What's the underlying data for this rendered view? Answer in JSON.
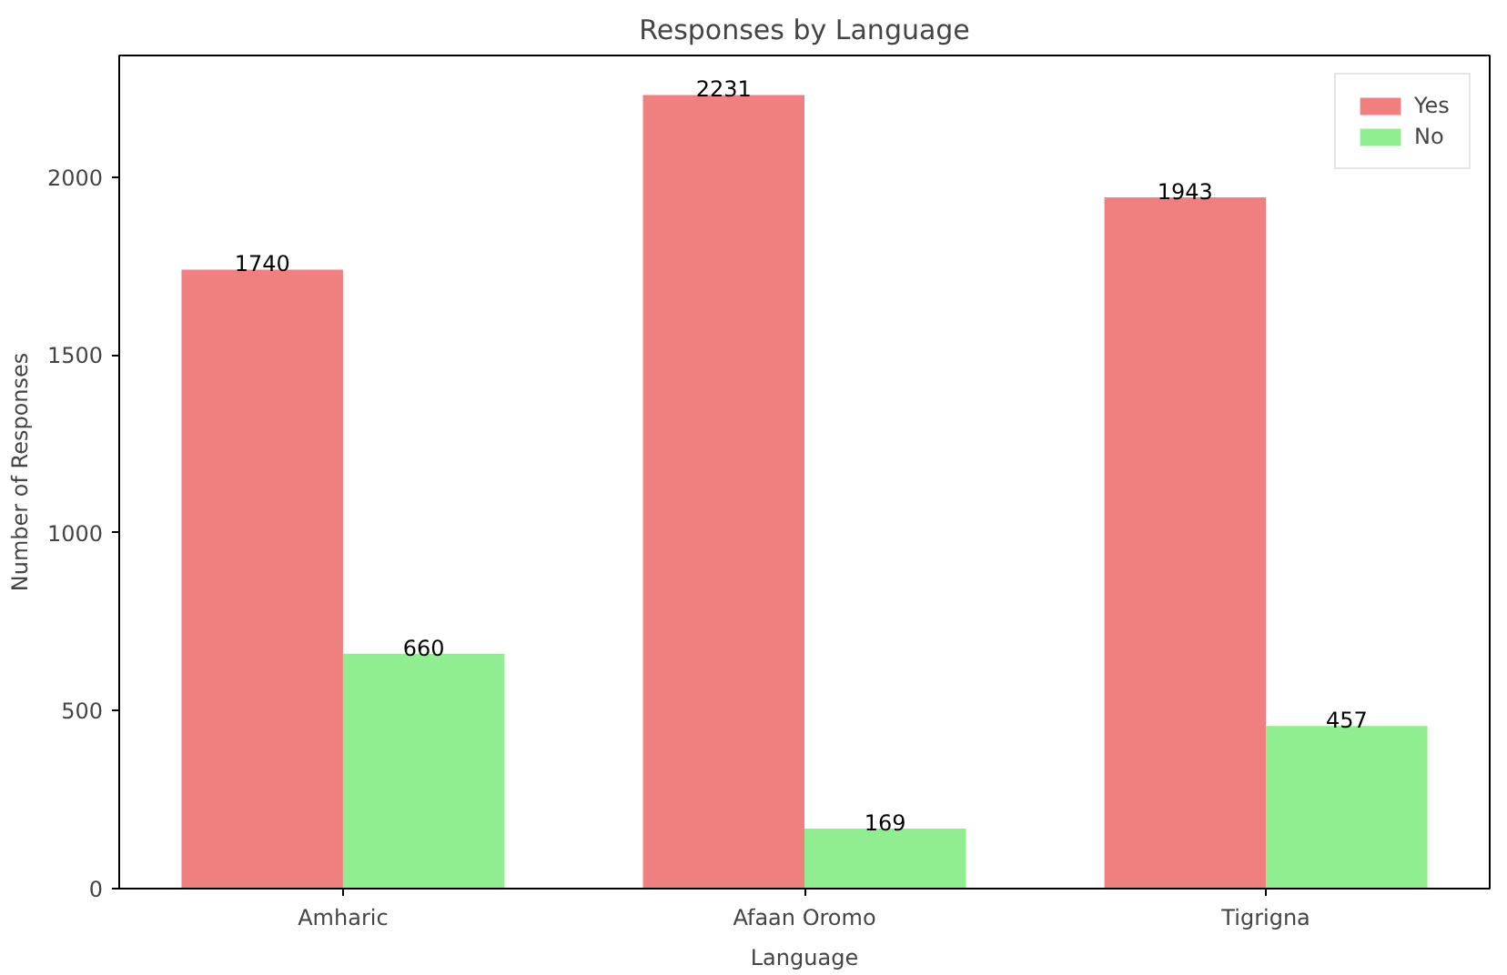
{
  "chart_data": {
    "type": "bar",
    "title": "Responses by Language",
    "xlabel": "Language",
    "ylabel": "Number of Responses",
    "categories": [
      "Amharic",
      "Afaan Oromo",
      "Tigrigna"
    ],
    "series": [
      {
        "name": "Yes",
        "color": "#f08080",
        "values": [
          1740,
          2231,
          1943
        ]
      },
      {
        "name": "No",
        "color": "#90ee90",
        "values": [
          660,
          169,
          457
        ]
      }
    ],
    "ylim": [
      0,
      2342
    ],
    "yticks": [
      0,
      500,
      1000,
      1500,
      2000
    ],
    "grid": false,
    "legend": "top right",
    "data_labels": true
  }
}
